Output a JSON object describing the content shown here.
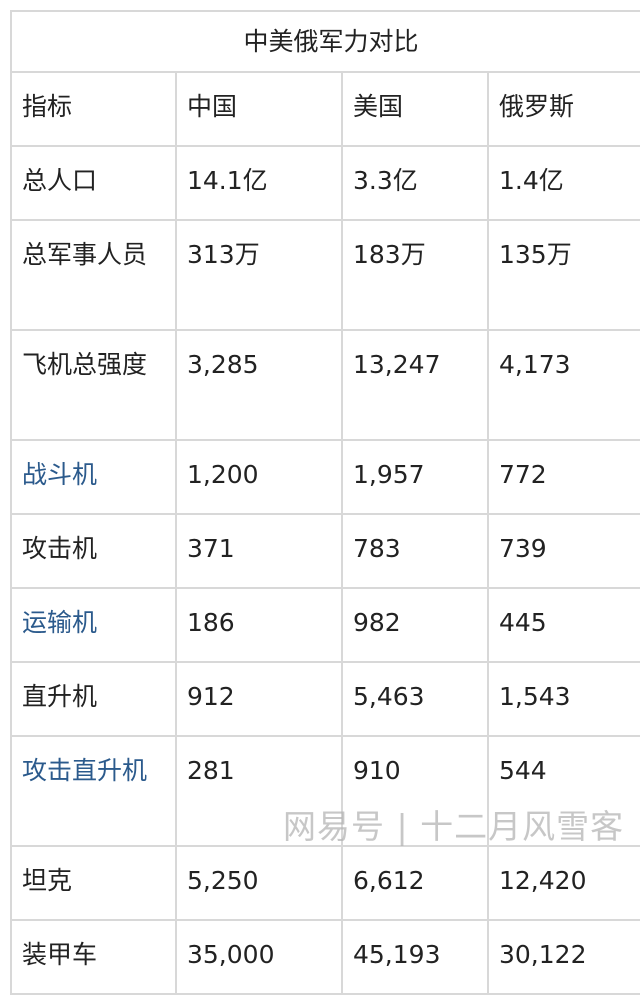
{
  "table": {
    "title": "中美俄军力对比",
    "headers": [
      "指标",
      "中国",
      "美国",
      "俄罗斯"
    ],
    "rows": [
      {
        "label": "总人口",
        "link": false,
        "tall": false,
        "values": [
          "14.1亿",
          "3.3亿",
          "1.4亿"
        ]
      },
      {
        "label": "总军事人员",
        "link": false,
        "tall": true,
        "values": [
          "313万",
          "183万",
          "135万"
        ]
      },
      {
        "label": "飞机总强度",
        "link": false,
        "tall": true,
        "values": [
          "3,285",
          "13,247",
          "4,173"
        ]
      },
      {
        "label": "战斗机",
        "link": true,
        "tall": false,
        "values": [
          "1,200",
          "1,957",
          "772"
        ]
      },
      {
        "label": "攻击机",
        "link": false,
        "tall": false,
        "values": [
          "371",
          "783",
          "739"
        ]
      },
      {
        "label": "运输机",
        "link": true,
        "tall": false,
        "values": [
          "186",
          "982",
          "445"
        ]
      },
      {
        "label": "直升机",
        "link": false,
        "tall": false,
        "values": [
          "912",
          "5,463",
          "1,543"
        ]
      },
      {
        "label": "攻击直升机",
        "link": true,
        "tall": true,
        "values": [
          "281",
          "910",
          "544"
        ]
      },
      {
        "label": "坦克",
        "link": false,
        "tall": false,
        "values": [
          "5,250",
          "6,612",
          "12,420"
        ]
      },
      {
        "label": "装甲车",
        "link": false,
        "tall": false,
        "values": [
          "35,000",
          "45,193",
          "30,122"
        ]
      }
    ]
  },
  "watermark": "网易号 | 十二月风雪客",
  "colors": {
    "link": "#2b5a8c",
    "border": "#d8d8d8",
    "text": "#222222"
  }
}
